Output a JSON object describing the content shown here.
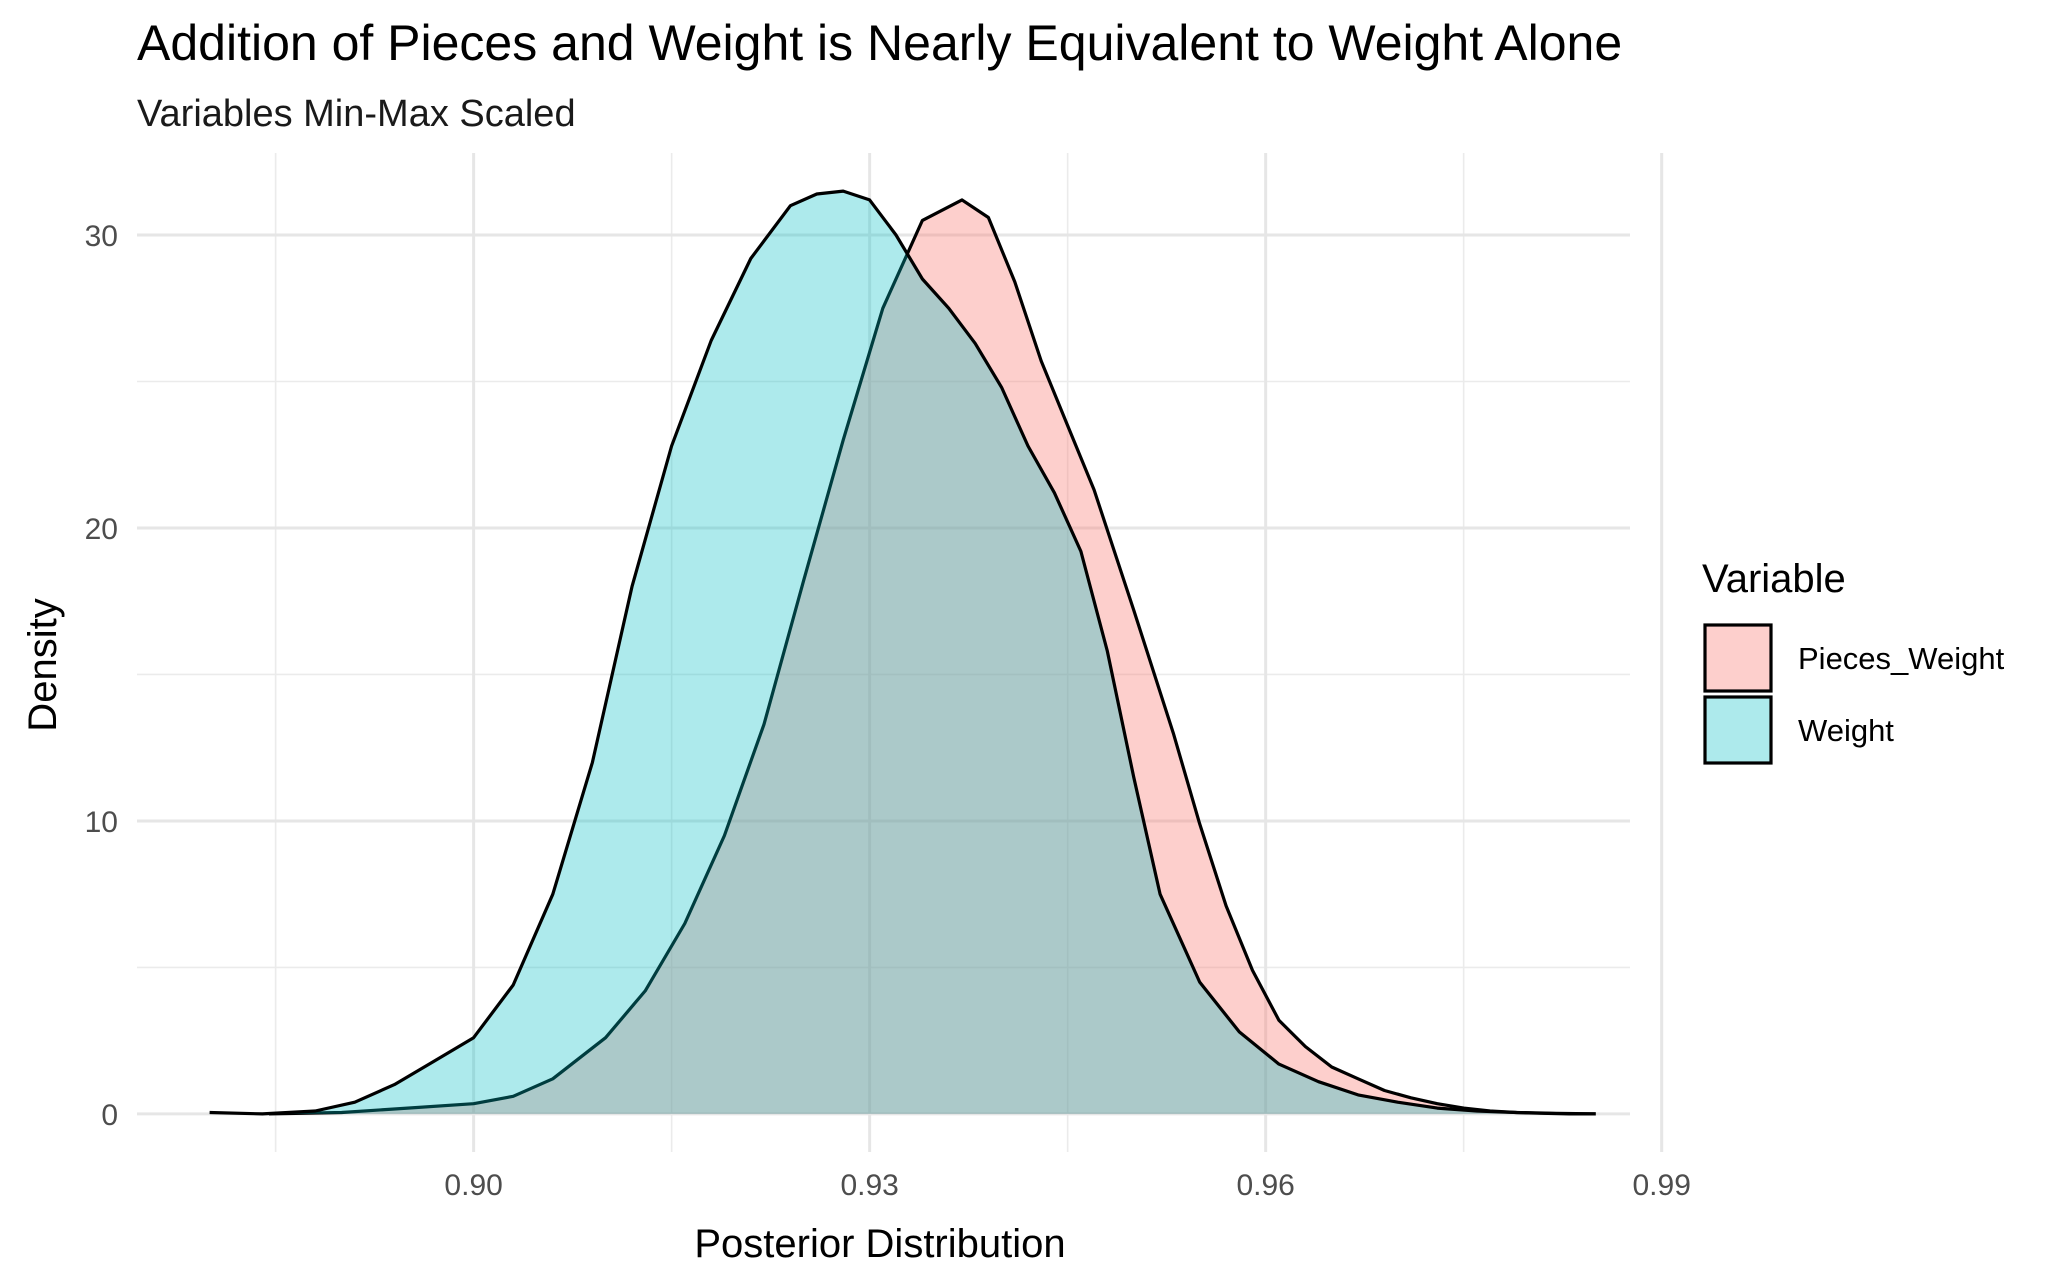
{
  "chart_data": {
    "type": "area",
    "title": "Addition of Pieces and Weight is Nearly Equivalent to Weight Alone",
    "subtitle": "Variables Min-Max Scaled",
    "xlabel": "Posterior Distribution",
    "ylabel": "Density",
    "xlim": [
      0.8745,
      0.9876
    ],
    "ylim": [
      -1.3,
      32.8
    ],
    "x_ticks": [
      0.9,
      0.93,
      0.96,
      0.99
    ],
    "x_tick_labels": [
      "0.90",
      "0.93",
      "0.96",
      "0.99"
    ],
    "y_ticks": [
      0,
      10,
      20,
      30
    ],
    "y_tick_labels": [
      "0",
      "10",
      "20",
      "30"
    ],
    "x_minor_ticks": [
      0.885,
      0.915,
      0.945,
      0.975
    ],
    "y_minor_ticks": [
      5,
      15,
      25
    ],
    "grid": true,
    "legend": {
      "title": "Variable",
      "position": "right"
    },
    "series": [
      {
        "name": "Pieces_Weight",
        "color": "#F8766D",
        "fill_opacity": 0.35,
        "x": [
          0.8845,
          0.89,
          0.895,
          0.9,
          0.903,
          0.906,
          0.91,
          0.913,
          0.916,
          0.919,
          0.922,
          0.925,
          0.928,
          0.931,
          0.934,
          0.937,
          0.939,
          0.941,
          0.943,
          0.945,
          0.947,
          0.95,
          0.953,
          0.955,
          0.957,
          0.959,
          0.961,
          0.963,
          0.965,
          0.967,
          0.969,
          0.971,
          0.973,
          0.975,
          0.977,
          0.979,
          0.981,
          0.983,
          0.985
        ],
        "y": [
          0.0,
          0.05,
          0.2,
          0.35,
          0.6,
          1.2,
          2.6,
          4.2,
          6.5,
          9.5,
          13.3,
          18.2,
          23.0,
          27.5,
          30.5,
          31.2,
          30.6,
          28.4,
          25.7,
          23.5,
          21.3,
          17.2,
          13.0,
          9.9,
          7.1,
          4.9,
          3.2,
          2.3,
          1.6,
          1.2,
          0.8,
          0.55,
          0.35,
          0.2,
          0.1,
          0.05,
          0.02,
          0.0,
          0.0
        ]
      },
      {
        "name": "Weight",
        "color": "#00BFC4",
        "fill_opacity": 0.32,
        "x": [
          0.88,
          0.884,
          0.888,
          0.891,
          0.894,
          0.897,
          0.9,
          0.903,
          0.906,
          0.909,
          0.912,
          0.915,
          0.918,
          0.921,
          0.924,
          0.926,
          0.928,
          0.93,
          0.932,
          0.934,
          0.936,
          0.938,
          0.94,
          0.942,
          0.944,
          0.946,
          0.948,
          0.95,
          0.952,
          0.955,
          0.958,
          0.961,
          0.964,
          0.967,
          0.97,
          0.973,
          0.976,
          0.979,
          0.982,
          0.985
        ],
        "y": [
          0.05,
          0.0,
          0.1,
          0.4,
          1.0,
          1.8,
          2.6,
          4.4,
          7.5,
          12.0,
          18.0,
          22.8,
          26.4,
          29.2,
          31.0,
          31.4,
          31.5,
          31.2,
          30.0,
          28.5,
          27.5,
          26.3,
          24.8,
          22.8,
          21.2,
          19.2,
          15.8,
          11.5,
          7.5,
          4.5,
          2.8,
          1.7,
          1.1,
          0.65,
          0.4,
          0.2,
          0.1,
          0.05,
          0.02,
          0.0
        ]
      }
    ]
  }
}
